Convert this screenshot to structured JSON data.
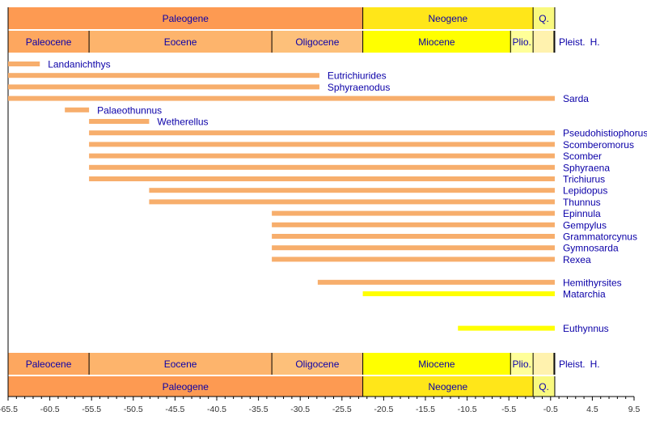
{
  "chart_data": {
    "type": "timeline",
    "xlim": [
      -65.5,
      9.5
    ],
    "x_ticks": [
      "-65.5",
      "-60.5",
      "-55.5",
      "-50.5",
      "-45.5",
      "-40.5",
      "-35.5",
      "-30.5",
      "-25.5",
      "-20.5",
      "-15.5",
      "-10.5",
      "-5.5",
      "-0.5",
      "4.5",
      "9.5"
    ],
    "periods": [
      {
        "name": "Paleogene",
        "start": -65.5,
        "end": -23.0,
        "color": "#FD9A52"
      },
      {
        "name": "Neogene",
        "start": -23.0,
        "end": -2.6,
        "color": "#FFE619"
      },
      {
        "name": "Q.",
        "start": -2.6,
        "end": 0,
        "color": "#F9F97F"
      }
    ],
    "epochs": [
      {
        "name": "Paleocene",
        "start": -65.5,
        "end": -55.8,
        "color": "#FDA75F"
      },
      {
        "name": "Eocene",
        "start": -55.8,
        "end": -33.9,
        "color": "#FDB46C"
      },
      {
        "name": "Oligocene",
        "start": -33.9,
        "end": -23.0,
        "color": "#FDC07A"
      },
      {
        "name": "Miocene",
        "start": -23.0,
        "end": -5.3,
        "color": "#FFFF00"
      },
      {
        "name": "Plio.",
        "start": -5.3,
        "end": -2.6,
        "color": "#FFFF99"
      },
      {
        "name": "Pleist.",
        "start": -2.6,
        "end": -0.1,
        "color": "#FFF2AE"
      },
      {
        "name": "H.",
        "start": -0.1,
        "end": 0,
        "color": "#FEF2E0"
      }
    ],
    "bar_colors": {
      "paleogene_origin": "#F7AE6C",
      "neogene_origin": "#FFFF00"
    },
    "taxa": [
      {
        "name": "Landanichthys",
        "start": -65.5,
        "end": -61.7,
        "row": 0,
        "color": "paleogene_origin"
      },
      {
        "name": "Eutrichiurides",
        "start": -65.5,
        "end": -28.2,
        "row": 1,
        "color": "paleogene_origin"
      },
      {
        "name": "Sphyraenodus",
        "start": -65.5,
        "end": -28.2,
        "row": 2,
        "color": "paleogene_origin"
      },
      {
        "name": "Sarda",
        "start": -65.5,
        "end": 0,
        "row": 3,
        "color": "paleogene_origin"
      },
      {
        "name": "Palaeothunnus",
        "start": -58.7,
        "end": -55.8,
        "row": 4,
        "color": "paleogene_origin"
      },
      {
        "name": "Wetherellus",
        "start": -55.8,
        "end": -48.6,
        "row": 5,
        "color": "paleogene_origin"
      },
      {
        "name": "Pseudohistiophorus",
        "start": -55.8,
        "end": 0,
        "row": 6,
        "color": "paleogene_origin"
      },
      {
        "name": "Scomberomorus",
        "start": -55.8,
        "end": 0,
        "row": 7,
        "color": "paleogene_origin"
      },
      {
        "name": "Scomber",
        "start": -55.8,
        "end": 0,
        "row": 8,
        "color": "paleogene_origin"
      },
      {
        "name": "Sphyraena",
        "start": -55.8,
        "end": 0,
        "row": 9,
        "color": "paleogene_origin"
      },
      {
        "name": "Trichiurus",
        "start": -55.8,
        "end": 0,
        "row": 10,
        "color": "paleogene_origin"
      },
      {
        "name": "Lepidopus",
        "start": -48.6,
        "end": 0,
        "row": 11,
        "color": "paleogene_origin"
      },
      {
        "name": "Thunnus",
        "start": -48.6,
        "end": 0,
        "row": 12,
        "color": "paleogene_origin"
      },
      {
        "name": "Epinnula",
        "start": -33.9,
        "end": 0,
        "row": 13,
        "color": "paleogene_origin"
      },
      {
        "name": "Gempylus",
        "start": -33.9,
        "end": 0,
        "row": 14,
        "color": "paleogene_origin"
      },
      {
        "name": "Grammatorcynus",
        "start": -33.9,
        "end": 0,
        "row": 15,
        "color": "paleogene_origin"
      },
      {
        "name": "Gymnosarda",
        "start": -33.9,
        "end": 0,
        "row": 16,
        "color": "paleogene_origin"
      },
      {
        "name": "Rexea",
        "start": -33.9,
        "end": 0,
        "row": 17,
        "color": "paleogene_origin"
      },
      {
        "name": "Hemithyrsites",
        "start": -28.4,
        "end": 0,
        "row": 19,
        "color": "paleogene_origin"
      },
      {
        "name": "Matarchia",
        "start": -23.0,
        "end": 0,
        "row": 20,
        "color": "neogene_origin"
      },
      {
        "name": "Euthynnus",
        "start": -11.6,
        "end": 0,
        "row": 23,
        "color": "neogene_origin"
      }
    ]
  }
}
